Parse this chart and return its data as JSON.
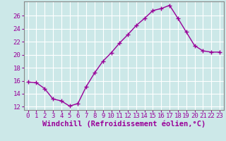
{
  "x": [
    0,
    1,
    2,
    3,
    4,
    5,
    6,
    7,
    8,
    9,
    10,
    11,
    12,
    13,
    14,
    15,
    16,
    17,
    18,
    19,
    20,
    21,
    22,
    23
  ],
  "y": [
    15.8,
    15.7,
    14.8,
    13.2,
    12.9,
    12.1,
    12.5,
    15.1,
    17.2,
    19.0,
    20.3,
    21.8,
    23.1,
    24.5,
    25.6,
    26.8,
    27.1,
    27.6,
    25.6,
    23.5,
    21.4,
    20.6,
    20.4,
    20.4
  ],
  "line_color": "#990099",
  "marker": "+",
  "marker_size": 4,
  "xlabel": "Windchill (Refroidissement éolien,°C)",
  "xlabel_fontsize": 7.5,
  "ylim": [
    11.5,
    28.2
  ],
  "yticks": [
    12,
    14,
    16,
    18,
    20,
    22,
    24,
    26
  ],
  "xticks": [
    0,
    1,
    2,
    3,
    4,
    5,
    6,
    7,
    8,
    9,
    10,
    11,
    12,
    13,
    14,
    15,
    16,
    17,
    18,
    19,
    20,
    21,
    22,
    23
  ],
  "background_color": "#cce8e8",
  "grid_color": "#ffffff",
  "tick_color": "#990099",
  "tick_fontsize": 6.5,
  "line_width": 1.0,
  "spine_color": "#888888"
}
